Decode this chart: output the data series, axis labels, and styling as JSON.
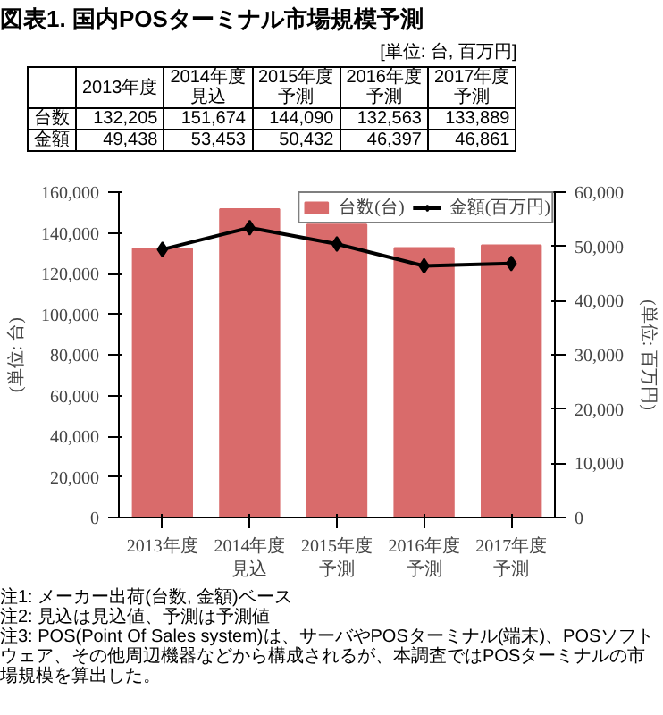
{
  "chart_data": {
    "type": "bar",
    "title": "図表1. 国内POSターミナル市場規模予測",
    "categories": [
      "2013年度",
      "2014年度見込",
      "2015年度予測",
      "2016年度予測",
      "2017年度予測"
    ],
    "series": [
      {
        "name": "台数(台)",
        "color": "#d96b6b",
        "values": [
          132205,
          151674,
          144090,
          132563,
          133889
        ],
        "value_labels": [
          "132,205",
          "151,674",
          "144,090",
          "132,563",
          "133,889"
        ]
      },
      {
        "name": "金額(百万円)",
        "type": "line",
        "axis": "y2",
        "color": "#000000",
        "marker": "diamond",
        "values": [
          49438,
          53453,
          50432,
          46397,
          46861
        ],
        "value_labels": [
          "49,438",
          "53,453",
          "50,432",
          "46,397",
          "46,861"
        ]
      }
    ],
    "ylabel": "(単位: 台)",
    "y2label": "(単位: 百万円)",
    "ylim": [
      0,
      160000
    ],
    "yticks": [
      0,
      {
        "value": 20000,
        "label": "20,000"
      },
      {
        "value": 40000,
        "label": "40,000"
      },
      {
        "value": 60000,
        "label": "60,000"
      },
      {
        "value": 80000,
        "label": "80,000"
      },
      {
        "value": 100000,
        "label": "100,000"
      },
      {
        "value": 120000,
        "label": "120,000"
      },
      {
        "value": 140000,
        "label": "140,000"
      },
      {
        "value": 160000,
        "label": "160,000"
      }
    ],
    "y2lim": [
      0,
      60000
    ],
    "y2ticks": [
      0,
      {
        "value": 10000,
        "label": "10,000"
      },
      {
        "value": 20000,
        "label": "20,000"
      },
      {
        "value": 30000,
        "label": "30,000"
      },
      {
        "value": 40000,
        "label": "40,000"
      },
      {
        "value": 50000,
        "label": "50,000"
      },
      {
        "value": 60000,
        "label": "60,000"
      }
    ],
    "legend": "top right",
    "grid": false,
    "annotations": [
      "[単位: 台, 百万円]",
      "台数",
      "金額",
      "注1: メーカー出荷(台数, 金額)ベース",
      "注2: 見込は見込値、予測は予測値",
      "注3: POS(Point Of Sales system)は、サーバやPOSターミナル(端末)、POSソフトウェア、その他周辺機器などから構成されるが、本調査ではPOSターミナルの市場規模を算出した。"
    ]
  }
}
